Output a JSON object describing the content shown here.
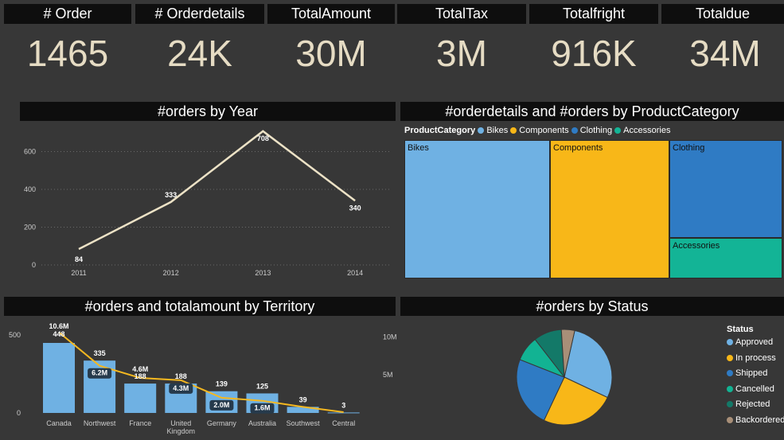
{
  "kpis": [
    {
      "title": "# Order",
      "value": "1465"
    },
    {
      "title": "# Orderdetails",
      "value": "24K"
    },
    {
      "title": "TotalAmount",
      "value": "30M"
    },
    {
      "title": "TotalTax",
      "value": "3M"
    },
    {
      "title": "Totalfright",
      "value": "916K"
    },
    {
      "title": "Totaldue",
      "value": "34M"
    }
  ],
  "colors": {
    "line": "#ece2c6",
    "bar": "#6fb1e3",
    "overlay": "#f5b820",
    "bikes": "#6fb1e3",
    "components": "#f8b718",
    "clothing": "#2f7bc4",
    "accessories": "#13b496",
    "cancelled": "#12b393",
    "rejected": "#137968",
    "backordered": "#a88f78"
  },
  "chart_data": [
    {
      "type": "line",
      "title": "#orders by Year",
      "x": [
        "2011",
        "2012",
        "2013",
        "2014"
      ],
      "values": [
        84,
        333,
        708,
        340
      ],
      "labels": [
        "84",
        "333",
        "708",
        "340"
      ],
      "yticks": [
        "0",
        "200",
        "400",
        "600"
      ],
      "ylim": [
        0,
        720
      ],
      "grid": true
    },
    {
      "type": "treemap",
      "title": "#orderdetails and #orders by ProductCategory",
      "legend_title": "ProductCategory",
      "categories": [
        "Bikes",
        "Components",
        "Clothing",
        "Accessories"
      ],
      "values": [
        41,
        32,
        18,
        9
      ]
    },
    {
      "type": "bar",
      "title": "#orders and totalamount by Territory",
      "categories": [
        "Canada",
        "Northwest",
        "France",
        "United Kingdom",
        "Germany",
        "Australia",
        "Southwest",
        "Central"
      ],
      "series": [
        {
          "name": "#orders",
          "values": [
            448,
            335,
            188,
            188,
            139,
            125,
            39,
            3
          ],
          "labels": [
            "448",
            "335",
            "188",
            "188",
            "139",
            "125",
            "39",
            "3"
          ]
        },
        {
          "name": "totalamount",
          "values": [
            10.6,
            6.2,
            4.6,
            4.3,
            2.0,
            1.6,
            0.8,
            0.1
          ],
          "labels": [
            "10.6M",
            "6.2M",
            "4.6M",
            "4.3M",
            "2.0M",
            "1.6M",
            "",
            ""
          ]
        }
      ],
      "yticks_left": [
        "0",
        "500"
      ],
      "yticks_right": [
        "5M",
        "10M"
      ],
      "ylim_left": [
        0,
        560
      ],
      "ylim_right": [
        0,
        11.5
      ]
    },
    {
      "type": "pie",
      "title": "#orders by Status",
      "legend_title": "Status",
      "categories": [
        "Approved",
        "In process",
        "Shipped",
        "Cancelled",
        "Rejected",
        "Backordered"
      ],
      "values": [
        28.5,
        25,
        24,
        8.5,
        9.5,
        4.5
      ],
      "colors": [
        "#6fb1e3",
        "#f8b718",
        "#2f7bc4",
        "#12b393",
        "#137968",
        "#a88f78"
      ]
    }
  ]
}
